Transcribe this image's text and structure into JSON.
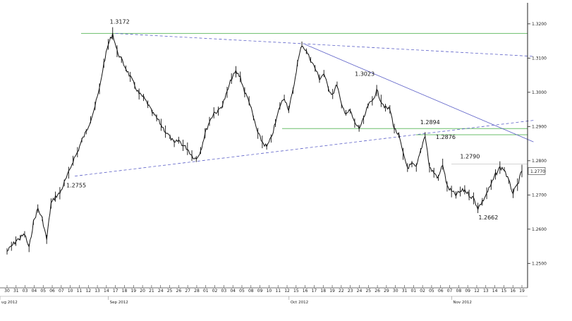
{
  "chart_data": {
    "type": "line",
    "title": "",
    "xlabel": "",
    "ylabel": "",
    "ylim": [
      1.2445,
      1.3245
    ],
    "y_ticks": [
      "1.3200",
      "1.3100",
      "1.3000",
      "1.2900",
      "1.2800",
      "1.2700",
      "1.2600",
      "1.2500"
    ],
    "y_tick_values": [
      1.32,
      1.31,
      1.3,
      1.29,
      1.28,
      1.27,
      1.26,
      1.25
    ],
    "last_price_label": "1.2770",
    "last_price_value": 1.277,
    "x_day_labels": [
      "30",
      "31",
      "03",
      "04",
      "05",
      "06",
      "07",
      "10",
      "11",
      "12",
      "13",
      "14",
      "17",
      "18",
      "19",
      "20",
      "21",
      "24",
      "25",
      "26",
      "27",
      "28",
      "01",
      "02",
      "03",
      "04",
      "05",
      "08",
      "09",
      "10",
      "11",
      "12",
      "15",
      "16",
      "17",
      "18",
      "19",
      "22",
      "23",
      "24",
      "25",
      "26",
      "29",
      "30",
      "31",
      "01",
      "02",
      "05",
      "06",
      "07",
      "08",
      "09",
      "12",
      "13",
      "14",
      "15",
      "16",
      "19"
    ],
    "x_month_labels": [
      {
        "label": "ug 2012",
        "index": 0
      },
      {
        "label": "Sep 2012",
        "index": 12
      },
      {
        "label": "Oct 2012",
        "index": 32
      },
      {
        "label": "Nov 2012",
        "index": 50
      }
    ],
    "series": [
      {
        "values": [
          1.2535,
          1.255,
          1.2565,
          1.2575,
          1.2585,
          1.2545,
          1.262,
          1.266,
          1.263,
          1.257,
          1.2675,
          1.2695,
          1.2705,
          1.2735,
          1.2765,
          1.28,
          1.2825,
          1.286,
          1.2885,
          1.292,
          1.296,
          1.301,
          1.3085,
          1.314,
          1.3172,
          1.312,
          1.3095,
          1.307,
          1.3045,
          1.302,
          1.2995,
          1.2985,
          1.2965,
          1.294,
          1.2925,
          1.2905,
          1.2885,
          1.287,
          1.285,
          1.286,
          1.2845,
          1.2835,
          1.2815,
          1.2805,
          1.283,
          1.288,
          1.2915,
          1.294,
          1.2945,
          1.2965,
          1.3,
          1.304,
          1.306,
          1.3045,
          1.3,
          1.2975,
          1.2925,
          1.288,
          1.2855,
          1.284,
          1.2865,
          1.291,
          1.296,
          1.2985,
          1.295,
          1.3005,
          1.3085,
          1.314,
          1.312,
          1.3095,
          1.307,
          1.304,
          1.3055,
          1.301,
          1.2995,
          1.3023,
          1.296,
          1.294,
          1.2945,
          1.291,
          1.2895,
          1.292,
          1.296,
          1.2975,
          1.3005,
          1.2975,
          1.2955,
          1.295,
          1.2894,
          1.2875,
          1.282,
          1.278,
          1.279,
          1.278,
          1.283,
          1.2876,
          1.278,
          1.2765,
          1.275,
          1.279,
          1.2725,
          1.271,
          1.27,
          1.271,
          1.2715,
          1.27,
          1.269,
          1.2662,
          1.268,
          1.2705,
          1.273,
          1.276,
          1.278,
          1.2775,
          1.274,
          1.2705,
          1.273,
          1.277
        ]
      }
    ],
    "horizontal_lines": [
      1.3172,
      1.2894,
      1.2876,
      1.279
    ],
    "trendlines": [
      {
        "from": {
          "x_index": 12,
          "y": 1.3172
        },
        "to": {
          "x_index": 57.5,
          "y": 1.3105
        },
        "style": "dashed"
      },
      {
        "from": {
          "x_index": 7.5,
          "y": 1.2755
        },
        "to": {
          "x_index": 57.5,
          "y": 1.2918
        },
        "style": "dashed"
      },
      {
        "from": {
          "x_index": 33,
          "y": 1.314
        },
        "to": {
          "x_index": 57.5,
          "y": 1.2855
        },
        "style": "solid"
      }
    ],
    "annotations": [
      {
        "text": "1.3172",
        "x_index": 12,
        "y": 1.3172
      },
      {
        "text": "1.2755",
        "x_index": 7.5,
        "y": 1.2755
      },
      {
        "text": "1.3023",
        "x_index": 38.5,
        "y": 1.3023
      },
      {
        "text": "1.2894",
        "x_index": 45.5,
        "y": 1.2894
      },
      {
        "text": "1.2876",
        "x_index": 47,
        "y": 1.2876
      },
      {
        "text": "1.2790",
        "x_index": 50,
        "y": 1.279
      },
      {
        "text": "1.2662",
        "x_index": 52.5,
        "y": 1.2662
      }
    ],
    "grid": false,
    "legend": "none"
  }
}
